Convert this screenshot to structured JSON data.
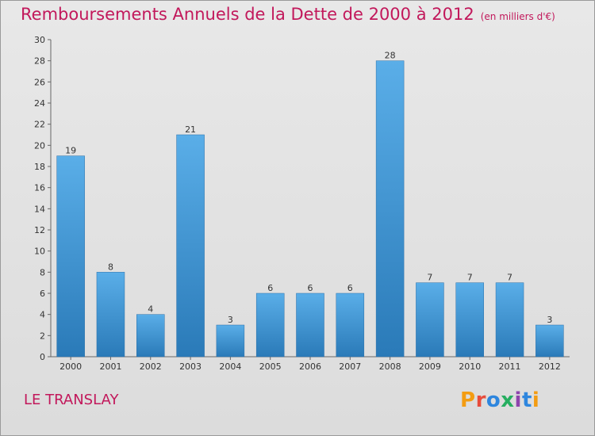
{
  "header": {
    "title": "Remboursements Annuels de la Dette de 2000 à 2012",
    "unit": "(en milliers d'€)"
  },
  "footer": {
    "commune": "LE TRANSLAY",
    "logo": "Proxiti"
  },
  "colors": {
    "title": "#c2185b",
    "bar_top": "#5aaee8",
    "bar_bottom": "#2a7ab8",
    "background": "#e0e0e0"
  },
  "chart_data": {
    "type": "bar",
    "categories": [
      "2000",
      "2001",
      "2002",
      "2003",
      "2004",
      "2005",
      "2006",
      "2007",
      "2008",
      "2009",
      "2010",
      "2011",
      "2012"
    ],
    "values": [
      19,
      8,
      4,
      21,
      3,
      6,
      6,
      6,
      28,
      7,
      7,
      7,
      3
    ],
    "title": "Remboursements Annuels de la Dette de 2000 à 2012",
    "xlabel": "",
    "ylabel": "",
    "ylim": [
      0,
      30
    ],
    "yticks": [
      0,
      2,
      4,
      6,
      8,
      10,
      12,
      14,
      16,
      18,
      20,
      22,
      24,
      26,
      28,
      30
    ],
    "grid": false,
    "data_labels": true
  }
}
